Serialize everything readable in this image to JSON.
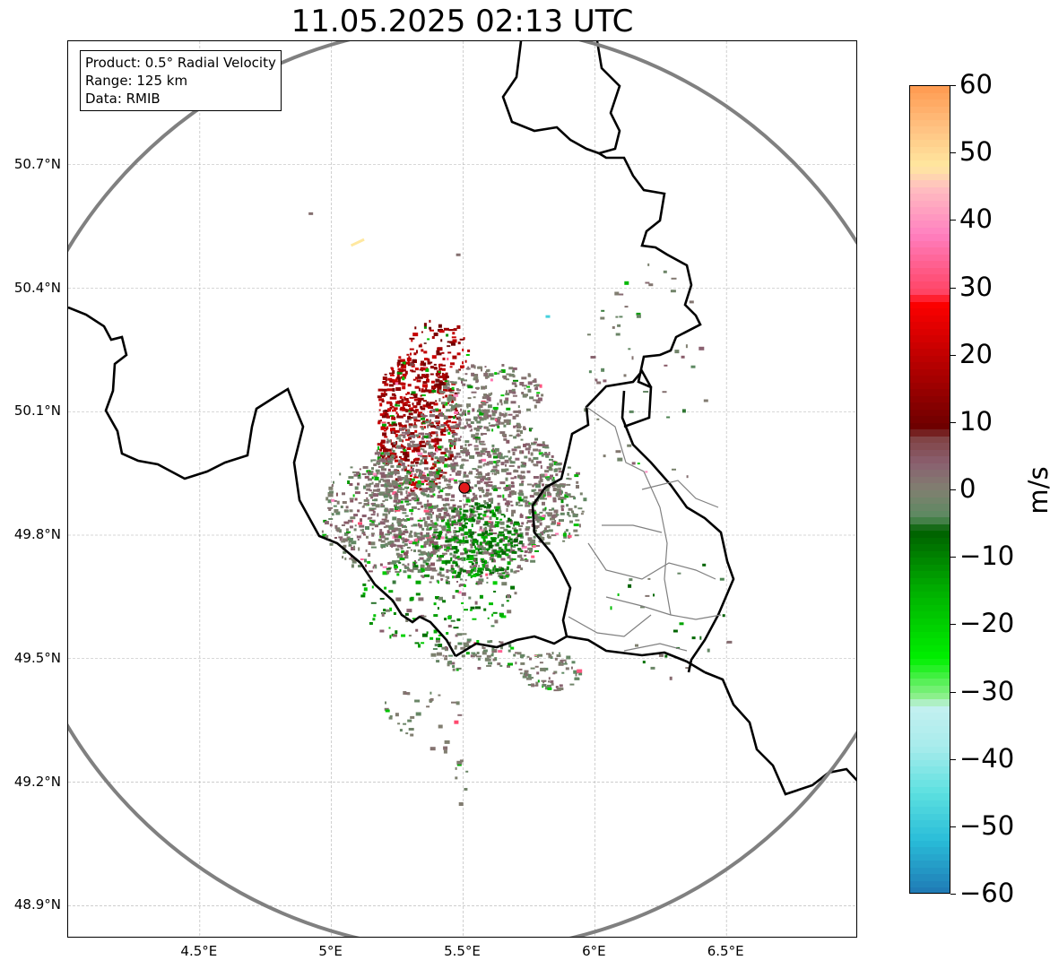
{
  "title": "11.05.2025 02:13 UTC",
  "info": {
    "product": "Product: 0.5° Radial Velocity",
    "range": "Range: 125 km",
    "data": "Data: RMIB"
  },
  "axes": {
    "lon_range": [
      4.0,
      7.0
    ],
    "lat_range": [
      48.82,
      51.0
    ],
    "lon_ticks": [
      {
        "value": 4.5,
        "label": "4.5°E"
      },
      {
        "value": 5.0,
        "label": "5°E"
      },
      {
        "value": 5.5,
        "label": "5.5°E"
      },
      {
        "value": 6.0,
        "label": "6°E"
      },
      {
        "value": 6.5,
        "label": "6.5°E"
      }
    ],
    "lat_ticks": [
      {
        "value": 50.7,
        "label": "50.7°N"
      },
      {
        "value": 50.4,
        "label": "50.4°N"
      },
      {
        "value": 50.1,
        "label": "50.1°N"
      },
      {
        "value": 49.8,
        "label": "49.8°N"
      },
      {
        "value": 49.5,
        "label": "49.5°N"
      },
      {
        "value": 49.2,
        "label": "49.2°N"
      },
      {
        "value": 48.9,
        "label": "48.9°N"
      }
    ],
    "gridlines": true
  },
  "radar": {
    "lon": 5.505,
    "lat": 49.915,
    "range_km": 125,
    "marker_color": "#e31a1c",
    "ring_color": "#808080"
  },
  "colorbar": {
    "unit": "m/s",
    "min": -60,
    "max": 60,
    "tick_labels": [
      "60",
      "50",
      "40",
      "30",
      "20",
      "10",
      "0",
      "−10",
      "−20",
      "−30",
      "−40",
      "−50",
      "−60"
    ],
    "stops": [
      {
        "v": -60,
        "c": "#1f78b4"
      },
      {
        "v": -52,
        "c": "#29bcd8"
      },
      {
        "v": -45,
        "c": "#5ce0e0"
      },
      {
        "v": -38,
        "c": "#a8ecec"
      },
      {
        "v": -32,
        "c": "#c4f0f0"
      },
      {
        "v": -31,
        "c": "#98f098"
      },
      {
        "v": -25,
        "c": "#00f000"
      },
      {
        "v": -15,
        "c": "#00b000"
      },
      {
        "v": -6,
        "c": "#006000"
      },
      {
        "v": -4,
        "c": "#5a8a60"
      },
      {
        "v": 0,
        "c": "#808070"
      },
      {
        "v": 4,
        "c": "#8a6070"
      },
      {
        "v": 8,
        "c": "#804040"
      },
      {
        "v": 9,
        "c": "#6a0000"
      },
      {
        "v": 20,
        "c": "#c00000"
      },
      {
        "v": 28,
        "c": "#ff0000"
      },
      {
        "v": 29,
        "c": "#ff4060"
      },
      {
        "v": 38,
        "c": "#ff80c0"
      },
      {
        "v": 45,
        "c": "#ffc0c0"
      },
      {
        "v": 48,
        "c": "#ffe8a0"
      },
      {
        "v": 54,
        "c": "#ffc080"
      },
      {
        "v": 60,
        "c": "#ff9a50"
      }
    ]
  },
  "chart_data": {
    "type": "heatmap",
    "title": "11.05.2025 02:13 UTC",
    "xlabel": "",
    "ylabel": "",
    "colorbar_label": "m/s",
    "value_range": [
      -60,
      60
    ],
    "clusters": [
      {
        "lon": 5.32,
        "lat": 50.08,
        "rlon": 0.16,
        "rlat": 0.17,
        "v_range": [
          10,
          22
        ],
        "density": 0.55
      },
      {
        "lon": 5.4,
        "lat": 50.25,
        "rlon": 0.12,
        "rlat": 0.08,
        "v_range": [
          8,
          22
        ],
        "density": 0.25
      },
      {
        "lon": 5.5,
        "lat": 49.9,
        "rlon": 0.38,
        "rlat": 0.22,
        "v_range": [
          -3,
          5
        ],
        "density": 0.45
      },
      {
        "lon": 5.55,
        "lat": 49.79,
        "rlon": 0.17,
        "rlat": 0.09,
        "v_range": [
          -15,
          -5
        ],
        "density": 0.45
      },
      {
        "lon": 5.6,
        "lat": 50.15,
        "rlon": 0.2,
        "rlat": 0.07,
        "v_range": [
          -2,
          4
        ],
        "density": 0.35
      },
      {
        "lon": 5.2,
        "lat": 49.85,
        "rlon": 0.25,
        "rlat": 0.14,
        "v_range": [
          -4,
          6
        ],
        "density": 0.3
      },
      {
        "lon": 5.4,
        "lat": 49.65,
        "rlon": 0.3,
        "rlat": 0.12,
        "v_range": [
          -20,
          5
        ],
        "density": 0.12
      },
      {
        "lon": 5.85,
        "lat": 49.88,
        "rlon": 0.12,
        "rlat": 0.1,
        "v_range": [
          -4,
          3
        ],
        "density": 0.25
      },
      {
        "lon": 5.55,
        "lat": 49.51,
        "rlon": 0.18,
        "rlat": 0.04,
        "v_range": [
          -4,
          4
        ],
        "density": 0.3
      },
      {
        "lon": 5.82,
        "lat": 49.47,
        "rlon": 0.12,
        "rlat": 0.05,
        "v_range": [
          -4,
          4
        ],
        "density": 0.35
      },
      {
        "lon": 5.35,
        "lat": 49.35,
        "rlon": 0.2,
        "rlat": 0.08,
        "v_range": [
          -3,
          3
        ],
        "density": 0.06
      },
      {
        "lon": 5.48,
        "lat": 49.2,
        "rlon": 0.04,
        "rlat": 0.06,
        "v_range": [
          -3,
          3
        ],
        "density": 0.1
      },
      {
        "lon": 6.2,
        "lat": 50.18,
        "rlon": 0.25,
        "rlat": 0.3,
        "v_range": [
          -5,
          5
        ],
        "density": 0.02
      },
      {
        "lon": 6.3,
        "lat": 49.6,
        "rlon": 0.25,
        "rlat": 0.15,
        "v_range": [
          -8,
          3
        ],
        "density": 0.02
      }
    ],
    "features": [
      {
        "lon": 5.1,
        "lat": 50.51,
        "v": 48,
        "kind": "streak"
      },
      {
        "lon": 4.92,
        "lat": 50.58,
        "v": 2,
        "kind": "dot"
      },
      {
        "lon": 5.48,
        "lat": 50.48,
        "v": 2,
        "kind": "dot"
      },
      {
        "lon": 5.82,
        "lat": 50.33,
        "v": -48,
        "kind": "dot"
      }
    ]
  }
}
